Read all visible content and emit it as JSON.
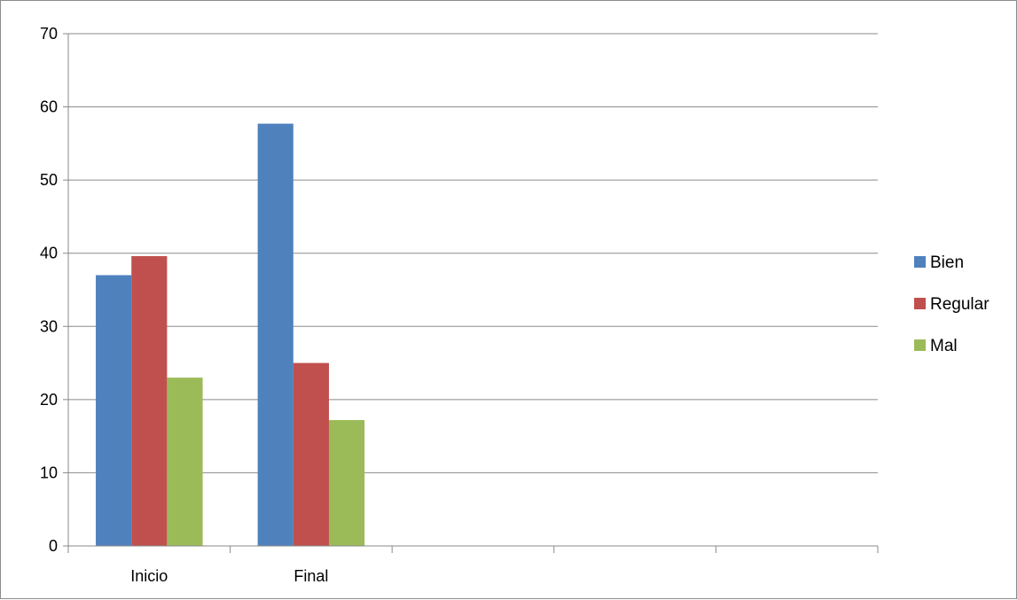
{
  "chart_data": {
    "type": "bar",
    "categories": [
      "Inicio",
      "Final",
      "",
      "",
      ""
    ],
    "series": [
      {
        "name": "Bien",
        "color": "#4F81BD",
        "values": [
          37,
          57.7,
          null,
          null,
          null
        ]
      },
      {
        "name": "Regular",
        "color": "#C0504D",
        "values": [
          39.6,
          25,
          null,
          null,
          null
        ]
      },
      {
        "name": "Mal",
        "color": "#9BBB59",
        "values": [
          23,
          17.2,
          null,
          null,
          null
        ]
      }
    ],
    "title": "",
    "xlabel": "",
    "ylabel": "",
    "ylim": [
      0,
      70
    ],
    "yticks": [
      "0",
      "10",
      "20",
      "30",
      "40",
      "50",
      "60",
      "70"
    ],
    "grid": true,
    "legend_position": "right"
  }
}
